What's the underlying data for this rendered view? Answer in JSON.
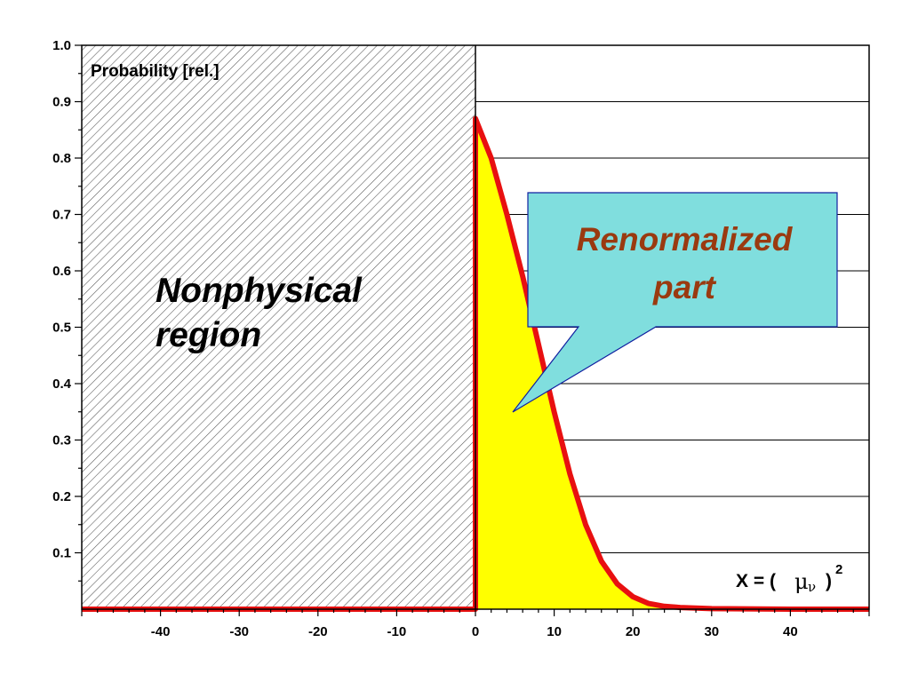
{
  "chart_data": {
    "type": "area",
    "ylabel": "Probability [rel.]",
    "xlabel": {
      "prefix": "X = (",
      "symbol": "μ",
      "subscript": "ν",
      "suffix": ")",
      "superscript": "2"
    },
    "xlim": [
      -50,
      50
    ],
    "ylim": [
      0,
      1.0
    ],
    "x_ticks": [
      -40,
      -30,
      -20,
      -10,
      0,
      10,
      20,
      30,
      40
    ],
    "y_ticks": [
      0.1,
      0.2,
      0.3,
      0.4,
      0.5,
      0.6,
      0.7,
      0.8,
      0.9,
      1.0
    ],
    "grid": "horizontal lines for x > 0",
    "series": [
      {
        "color": "#e81010",
        "fill_color": "#ffff00",
        "x": [
          -50,
          0,
          0,
          2,
          4,
          6,
          8,
          10,
          12,
          14,
          16,
          18,
          20,
          22,
          24,
          26,
          30,
          40,
          50
        ],
        "y": [
          0,
          0,
          0.87,
          0.8,
          0.7,
          0.59,
          0.47,
          0.35,
          0.24,
          0.15,
          0.085,
          0.045,
          0.022,
          0.01,
          0.005,
          0.003,
          0.001,
          0.0,
          0.0
        ]
      }
    ],
    "annotations": [
      {
        "text_lines": [
          "Nonphysical",
          "region"
        ],
        "region": "x < 0",
        "pattern": "diagonal hatch"
      },
      {
        "text_lines": [
          "Renormalized",
          "part"
        ],
        "type": "callout",
        "fill": "#80dede",
        "text_color": "#9a3a10",
        "points_to": {
          "x": 5,
          "y": 0.35
        }
      }
    ]
  }
}
